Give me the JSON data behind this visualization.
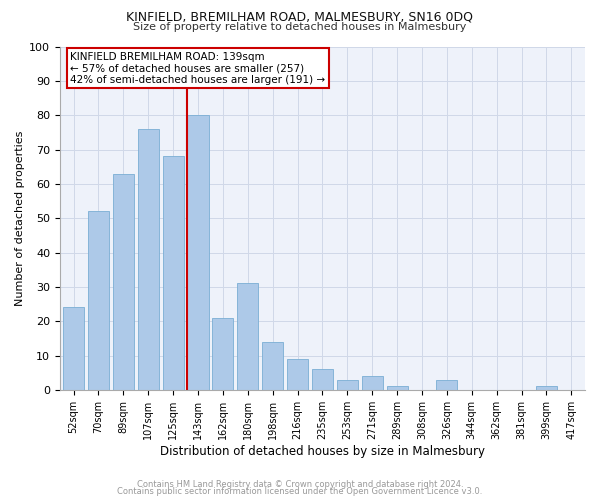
{
  "title": "KINFIELD, BREMILHAM ROAD, MALMESBURY, SN16 0DQ",
  "subtitle": "Size of property relative to detached houses in Malmesbury",
  "xlabel": "Distribution of detached houses by size in Malmesbury",
  "ylabel": "Number of detached properties",
  "footnote1": "Contains HM Land Registry data © Crown copyright and database right 2024.",
  "footnote2": "Contains public sector information licensed under the Open Government Licence v3.0.",
  "categories": [
    "52sqm",
    "70sqm",
    "89sqm",
    "107sqm",
    "125sqm",
    "143sqm",
    "162sqm",
    "180sqm",
    "198sqm",
    "216sqm",
    "235sqm",
    "253sqm",
    "271sqm",
    "289sqm",
    "308sqm",
    "326sqm",
    "344sqm",
    "362sqm",
    "381sqm",
    "399sqm",
    "417sqm"
  ],
  "values": [
    24,
    52,
    63,
    76,
    68,
    80,
    21,
    31,
    14,
    9,
    6,
    3,
    4,
    1,
    0,
    3,
    0,
    0,
    0,
    1,
    0
  ],
  "bar_color": "#adc9e8",
  "bar_edge_color": "#7aaed4",
  "marker_label": "KINFIELD BREMILHAM ROAD: 139sqm",
  "marker_line_color": "#cc0000",
  "annotation_line1": "← 57% of detached houses are smaller (257)",
  "annotation_line2": "42% of semi-detached houses are larger (191) →",
  "annotation_box_color": "#cc0000",
  "ylim": [
    0,
    100
  ],
  "yticks": [
    0,
    10,
    20,
    30,
    40,
    50,
    60,
    70,
    80,
    90,
    100
  ],
  "grid_color": "#d0d8e8",
  "background_color": "#eef2fa"
}
